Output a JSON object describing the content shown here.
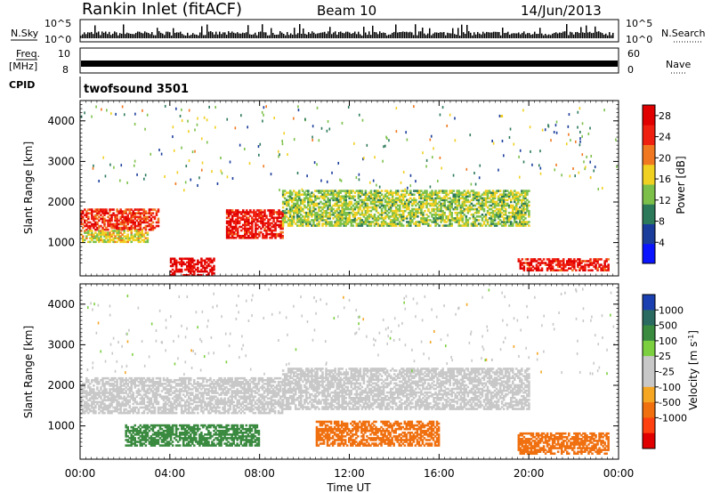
{
  "header": {
    "title": "Rankin Inlet (fitACF)",
    "beam": "Beam 10",
    "date": "14/Jun/2013"
  },
  "status_panels": {
    "nsky_label": "N.Sky",
    "nsearch_label": "N.Search",
    "nsky_ticks": [
      "10^5",
      "10^0"
    ],
    "freq_label_top": "Freq.",
    "freq_label_bottom": "[MHz]",
    "freq_ticks": [
      "10",
      "8"
    ],
    "nave_label": "Nave",
    "nave_ticks": [
      "60",
      "0"
    ],
    "cpid_label": "CPID",
    "cpid_value": "twofsound 3501"
  },
  "colors": {
    "power_scale": [
      "#0a14ff",
      "#1a3d9c",
      "#2d7a5a",
      "#7cc04a",
      "#f0d020",
      "#f07820",
      "#f02010",
      "#e00000"
    ],
    "velocity_scale": [
      "#1a3fb0",
      "#2a6a60",
      "#3a8a40",
      "#7cd040",
      "#c8c8c8",
      "#c8c8c8",
      "#f5a623",
      "#f07010",
      "#ff4010",
      "#e00000"
    ]
  },
  "chart_data": [
    {
      "type": "heatmap",
      "panel": "power",
      "ylabel": "Slant Range [km]",
      "yticks": [
        1000,
        2000,
        3000,
        4000
      ],
      "ylim": [
        180,
        4500
      ],
      "xlim": [
        0,
        24
      ],
      "xticks": [
        "00:00",
        "04:00",
        "08:00",
        "12:00",
        "16:00",
        "20:00",
        "00:00"
      ],
      "colorbar": {
        "label": "Power [dB]",
        "ticks": [
          "4",
          "8",
          "12",
          "16",
          "20",
          "24",
          "28"
        ],
        "range": [
          0,
          30
        ]
      },
      "bands": [
        {
          "t0": 0.0,
          "t1": 3.5,
          "r0": 1300,
          "r1": 1800,
          "value": 24
        },
        {
          "t0": 0.0,
          "t1": 3.0,
          "r0": 1000,
          "r1": 1300,
          "value": 16
        },
        {
          "t0": 4.0,
          "t1": 6.0,
          "r0": 180,
          "r1": 600,
          "value": 28
        },
        {
          "t0": 6.5,
          "t1": 9.0,
          "r0": 1100,
          "r1": 1800,
          "value": 26
        },
        {
          "t0": 9.0,
          "t1": 20.0,
          "r0": 1400,
          "r1": 2300,
          "value": 14
        },
        {
          "t0": 19.5,
          "t1": 23.5,
          "r0": 300,
          "r1": 600,
          "value": 26
        }
      ]
    },
    {
      "type": "heatmap",
      "panel": "velocity",
      "xlabel": "Time UT",
      "ylabel": "Slant Range [km]",
      "yticks": [
        1000,
        2000,
        3000,
        4000
      ],
      "ylim": [
        180,
        4500
      ],
      "xlim": [
        0,
        24
      ],
      "xticks": [
        "00:00",
        "04:00",
        "08:00",
        "12:00",
        "16:00",
        "20:00",
        "00:00"
      ],
      "colorbar": {
        "label": "Velocity [m s^-1]",
        "ticks": [
          "1000",
          "500",
          "100",
          "25",
          "-25",
          "-100",
          "-500",
          "-1000"
        ],
        "range": [
          -1250,
          1250
        ]
      },
      "bands": [
        {
          "t0": 0.0,
          "t1": 9.0,
          "r0": 1300,
          "r1": 2200,
          "value": 0
        },
        {
          "t0": 2.0,
          "t1": 8.0,
          "r0": 500,
          "r1": 1000,
          "value": 200
        },
        {
          "t0": 9.0,
          "t1": 20.0,
          "r0": 1400,
          "r1": 2400,
          "value": 0
        },
        {
          "t0": 10.5,
          "t1": 16.0,
          "r0": 500,
          "r1": 1100,
          "value": -250
        },
        {
          "t0": 19.5,
          "t1": 23.5,
          "r0": 300,
          "r1": 800,
          "value": -300
        }
      ]
    }
  ],
  "xlabel": "Time UT"
}
